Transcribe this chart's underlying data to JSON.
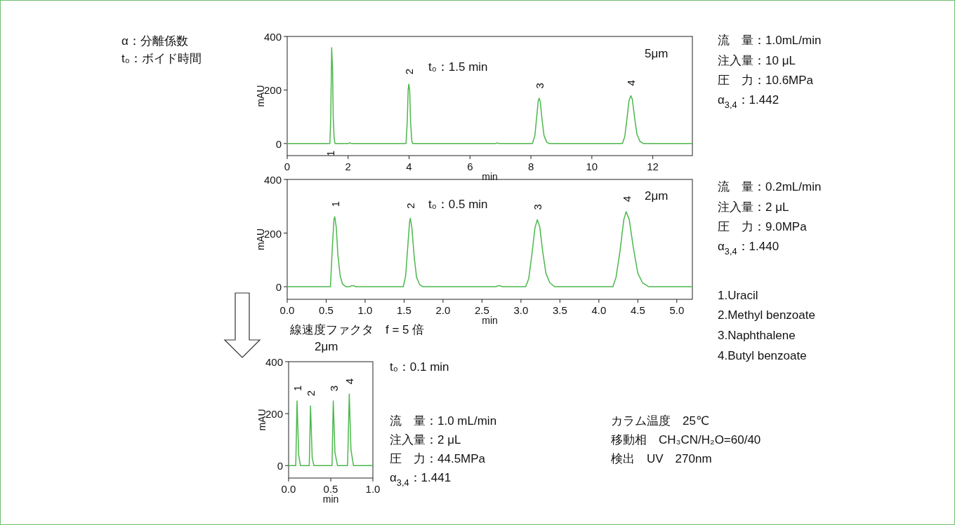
{
  "chart_data": [
    {
      "type": "line",
      "xlabel": "min",
      "ylabel": "mAU",
      "xlim": [
        0,
        13.3
      ],
      "ylim": [
        -45,
        400
      ],
      "xticks": [
        0,
        2,
        4,
        6,
        8,
        10,
        12
      ],
      "yticks": [
        0,
        200,
        400
      ],
      "series": [
        {
          "color": "#4cb84c",
          "x": [
            0,
            1.4,
            1.43,
            1.46,
            1.49,
            1.51,
            1.54,
            1.57,
            2.0,
            2.05,
            2.1,
            3.9,
            3.94,
            3.97,
            3.99,
            4.02,
            4.05,
            4.09,
            4.12,
            6.85,
            6.9,
            6.95,
            8.05,
            8.13,
            8.19,
            8.24,
            8.27,
            8.31,
            8.36,
            8.43,
            8.52,
            8.6,
            11.0,
            11.08,
            11.15,
            11.22,
            11.28,
            11.33,
            11.4,
            11.48,
            11.58,
            11.7,
            13.3
          ],
          "values": [
            0,
            0,
            100,
            358,
            270,
            100,
            20,
            0,
            0,
            3,
            0,
            0,
            80,
            200,
            222,
            200,
            80,
            10,
            0,
            0,
            3,
            0,
            0,
            30,
            100,
            160,
            169,
            155,
            95,
            30,
            5,
            0,
            0,
            25,
            90,
            160,
            179,
            165,
            100,
            35,
            8,
            0,
            0
          ]
        }
      ],
      "annotations": [
        {
          "text": "1",
          "x": 1.4,
          "y": 0
        },
        {
          "text": "2",
          "x": 3.99,
          "y": 222
        },
        {
          "text": "3",
          "x": 8.27,
          "y": 169
        },
        {
          "text": "4",
          "x": 11.28,
          "y": 179
        },
        "t₀：1.5 min",
        "5μm",
        "流　量：1.0mL/min",
        "注入量：10 μL",
        "圧　力：10.6MPa",
        "α$_{3,4}$：1.442",
        "α：分離係数",
        "t₀：ボイド時間"
      ]
    },
    {
      "type": "line",
      "xlabel": "min",
      "ylabel": "mAU",
      "xlim": [
        0,
        5.2
      ],
      "ylim": [
        -47,
        400
      ],
      "xticks": [
        {
          "value": 0,
          "label": "0.0"
        },
        0.5,
        {
          "value": 1,
          "label": "1.0"
        },
        1.5,
        {
          "value": 2,
          "label": "2.0"
        },
        2.5,
        {
          "value": 3,
          "label": "3.0"
        },
        3.5,
        {
          "value": 4,
          "label": "4.0"
        },
        4.5,
        {
          "value": 5,
          "label": "5.0"
        }
      ],
      "yticks": [
        0,
        200,
        400
      ],
      "series": [
        {
          "color": "#4cb84c",
          "x": [
            0,
            0.555,
            0.56,
            0.58,
            0.6,
            0.61,
            0.63,
            0.65,
            0.68,
            0.71,
            0.75,
            0.8,
            0.82,
            0.86,
            0.88,
            1.49,
            1.52,
            1.55,
            1.57,
            1.58,
            1.6,
            1.63,
            1.66,
            1.7,
            1.74,
            2.68,
            2.7,
            2.74,
            2.76,
            3.06,
            3.1,
            3.14,
            3.18,
            3.21,
            3.24,
            3.28,
            3.32,
            3.37,
            3.43,
            4.18,
            4.22,
            4.27,
            4.32,
            4.35,
            4.39,
            4.44,
            4.5,
            4.56,
            4.64,
            5.2
          ],
          "values": [
            0,
            0,
            33,
            150,
            250,
            261,
            220,
            120,
            40,
            10,
            0,
            0,
            3,
            3,
            0,
            0,
            40,
            160,
            240,
            255,
            220,
            110,
            35,
            8,
            0,
            0,
            3,
            3,
            0,
            0,
            30,
            120,
            220,
            250,
            225,
            130,
            50,
            15,
            0,
            0,
            35,
            130,
            250,
            280,
            250,
            150,
            50,
            15,
            0,
            0
          ]
        }
      ],
      "annotations": [
        {
          "text": "1",
          "x": 0.61,
          "y": 261
        },
        {
          "text": "2",
          "x": 1.58,
          "y": 255
        },
        {
          "text": "3",
          "x": 3.21,
          "y": 250
        },
        {
          "text": "4",
          "x": 4.35,
          "y": 280
        },
        "t₀：0.5 min",
        "2μm",
        "流　量：0.2mL/min",
        "注入量：2 μL",
        "圧　力：9.0MPa",
        "α$_{3,4}$：1.440",
        "1.Uracil",
        "2.Methyl benzoate",
        "3.Naphthalene",
        "4.Butyl benzoate"
      ]
    },
    {
      "type": "line",
      "xlabel": "min",
      "ylabel": "mAU",
      "xlim": [
        0,
        1
      ],
      "ylim": [
        -48,
        400
      ],
      "xticks": [
        {
          "value": 0,
          "label": "0.0"
        },
        0.5,
        {
          "value": 1,
          "label": "1.0"
        }
      ],
      "yticks": [
        0,
        200,
        400
      ],
      "series": [
        {
          "color": "#4cb84c",
          "x": [
            0,
            0.085,
            0.1,
            0.12,
            0.14,
            0.245,
            0.26,
            0.28,
            0.3,
            0.515,
            0.53,
            0.55,
            0.58,
            0.7,
            0.72,
            0.74,
            0.77,
            1.0
          ],
          "values": [
            0,
            0,
            249,
            40,
            0,
            0,
            230,
            30,
            0,
            0,
            249,
            50,
            0,
            0,
            276,
            60,
            0,
            0
          ]
        }
      ],
      "annotations": [
        {
          "text": "1",
          "x": 0.1,
          "y": 249
        },
        {
          "text": "2",
          "x": 0.26,
          "y": 230
        },
        {
          "text": "3",
          "x": 0.53,
          "y": 249
        },
        {
          "text": "4",
          "x": 0.72,
          "y": 276
        },
        "線速度ファクタ　f = 5 倍",
        "2μm",
        "t₀：0.1 min",
        "流　量：1.0 mL/min",
        "注入量：2 μL",
        "圧　力：44.5MPa",
        "α$_{3,4}$：1.441",
        "カラム温度　25℃",
        "移動相　CH₃CN/H₂O=60/40",
        "検出　UV　270nm"
      ]
    }
  ]
}
